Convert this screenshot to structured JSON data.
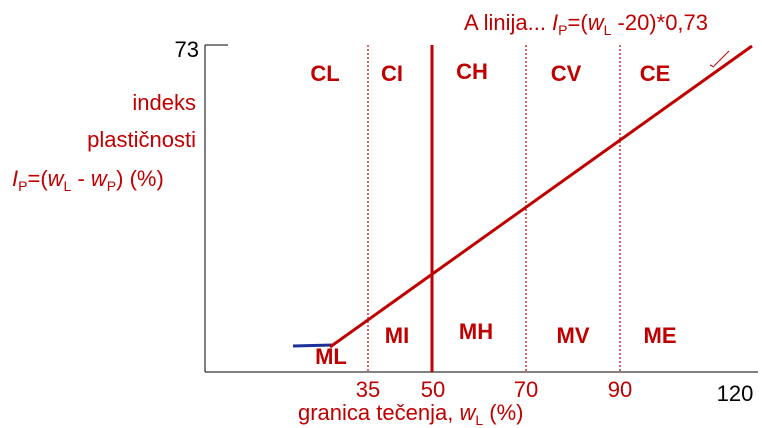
{
  "colors": {
    "red": "#c00000",
    "blue": "#1f2f9a",
    "axis": "#000000"
  },
  "title_formula": {
    "prefix": "A linija... ",
    "I": "I",
    "P": "P",
    "eq": "=(",
    "w": "w",
    "L": "L",
    "tail": " -20)*0,73"
  },
  "y_axis": {
    "top_tick": "73",
    "label_line1": "indeks",
    "label_line2": "plastičnosti",
    "formula": {
      "I": "I",
      "P": "P",
      "eq": "=(",
      "w1": "w",
      "L": "L",
      "minus": " - ",
      "w2": "w",
      "P2": "P",
      "tail": ") (%)"
    }
  },
  "x_axis": {
    "ticks": [
      "35",
      "50",
      "70",
      "90",
      "120"
    ],
    "label": {
      "text": "granica tečenja, ",
      "w": "w",
      "L": "L",
      "tail": " (%)"
    }
  },
  "zones_top": [
    "CL",
    "CI",
    "CH",
    "CV",
    "CE"
  ],
  "zones_bottom": [
    "ML",
    "MI",
    "MH",
    "MV",
    "ME"
  ],
  "chart_data": {
    "type": "line",
    "x_ticks": [
      35,
      50,
      70,
      90,
      120
    ],
    "y_ticks": [
      73
    ],
    "boundaries": [
      {
        "x": 35,
        "style": "dotted"
      },
      {
        "x": 50,
        "style": "solid"
      },
      {
        "x": 70,
        "style": "dotted"
      },
      {
        "x": 90,
        "style": "dotted"
      }
    ],
    "series": [
      {
        "name": "A linija",
        "equation": "IP = 0.73(wL - 20)",
        "x": [
          20,
          120
        ],
        "y": [
          0,
          73
        ]
      }
    ]
  }
}
